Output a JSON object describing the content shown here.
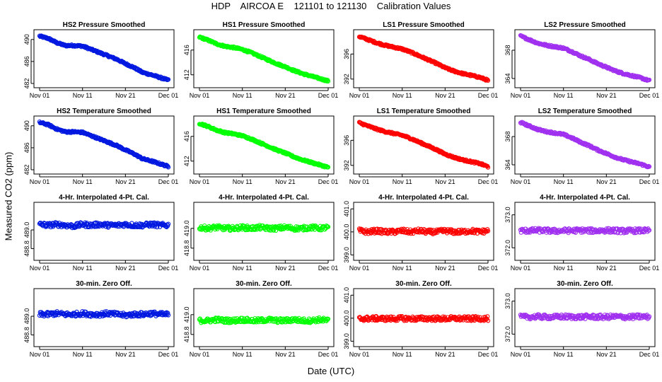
{
  "header": {
    "title": "HDP    AIRCOA E    121101 to 121130    Calibration Values",
    "ylabel": "Measured CO2 (ppm)",
    "xlabel": "Date (UTC)"
  },
  "colors": {
    "HS2": "#0018e0",
    "HS1": "#00ff00",
    "LS1": "#ff0000",
    "LS2": "#a030f0"
  },
  "x_axis": {
    "min_day": 1,
    "max_day": 31,
    "ticks": [
      {
        "day": 1,
        "label": "Nov 01"
      },
      {
        "day": 11,
        "label": "Nov 11"
      },
      {
        "day": 21,
        "label": "Nov 21"
      },
      {
        "day": 31,
        "label": "Dec 01"
      }
    ]
  },
  "chart_data": [
    {
      "type": "scatter",
      "title": "HS2 Pressure Smoothed",
      "series": "HS2",
      "ylim": [
        482,
        491
      ],
      "yticks": [
        482,
        486,
        490
      ],
      "x": [
        1,
        3,
        5,
        7,
        9,
        11,
        13,
        15,
        17,
        19,
        21,
        23,
        25,
        27,
        29,
        31
      ],
      "y": [
        490.6,
        490.2,
        489.4,
        488.9,
        488.9,
        488.8,
        488.2,
        487.6,
        487.0,
        486.4,
        485.6,
        484.9,
        484.0,
        483.6,
        483.1,
        482.6
      ]
    },
    {
      "type": "scatter",
      "title": "HS1 Pressure Smoothed",
      "series": "HS1",
      "ylim": [
        410.6,
        418.6
      ],
      "yticks": [
        412,
        416
      ],
      "x": [
        1,
        3,
        5,
        7,
        9,
        11,
        13,
        15,
        17,
        19,
        21,
        23,
        25,
        27,
        29,
        31
      ],
      "y": [
        418.1,
        417.6,
        417.0,
        416.6,
        416.4,
        416.1,
        415.6,
        415.0,
        414.4,
        413.8,
        413.3,
        412.7,
        412.2,
        411.8,
        411.4,
        411.0
      ]
    },
    {
      "type": "scatter",
      "title": "LS1 Pressure Smoothed",
      "series": "LS1",
      "ylim": [
        391.3,
        399.2
      ],
      "yticks": [
        392,
        396
      ],
      "x": [
        1,
        3,
        5,
        7,
        9,
        11,
        13,
        15,
        17,
        19,
        21,
        23,
        25,
        27,
        29,
        31
      ],
      "y": [
        398.8,
        398.3,
        397.8,
        397.4,
        397.1,
        396.8,
        396.3,
        395.7,
        395.1,
        394.5,
        393.8,
        393.3,
        392.9,
        392.6,
        392.3,
        391.8
      ]
    },
    {
      "type": "scatter",
      "title": "LS2 Pressure Smoothed",
      "series": "LS2",
      "ylim": [
        363.3,
        370.3
      ],
      "yticks": [
        364,
        368
      ],
      "x": [
        1,
        3,
        5,
        7,
        9,
        11,
        13,
        15,
        17,
        19,
        21,
        23,
        25,
        27,
        29,
        31
      ],
      "y": [
        370.0,
        369.5,
        369.0,
        368.7,
        368.5,
        368.3,
        367.8,
        367.2,
        366.7,
        366.1,
        365.6,
        365.1,
        364.7,
        364.4,
        364.1,
        363.7
      ]
    },
    {
      "type": "scatter",
      "title": "HS2 Temperature Smoothed",
      "series": "HS2",
      "ylim": [
        482,
        491
      ],
      "yticks": [
        482,
        486,
        490
      ],
      "x": [
        1,
        3,
        5,
        7,
        9,
        11,
        13,
        15,
        17,
        19,
        21,
        23,
        25,
        27,
        29,
        31
      ],
      "y": [
        490.6,
        490.2,
        489.4,
        488.9,
        488.9,
        488.8,
        488.2,
        487.6,
        487.0,
        486.4,
        485.6,
        484.9,
        484.0,
        483.6,
        483.1,
        482.6
      ]
    },
    {
      "type": "scatter",
      "title": "HS1 Temperature Smoothed",
      "series": "HS1",
      "ylim": [
        410.6,
        418.6
      ],
      "yticks": [
        412,
        416
      ],
      "x": [
        1,
        3,
        5,
        7,
        9,
        11,
        13,
        15,
        17,
        19,
        21,
        23,
        25,
        27,
        29,
        31
      ],
      "y": [
        418.1,
        417.6,
        417.0,
        416.6,
        416.4,
        416.1,
        415.6,
        415.0,
        414.4,
        413.8,
        413.3,
        412.7,
        412.2,
        411.8,
        411.4,
        411.0
      ]
    },
    {
      "type": "scatter",
      "title": "LS1 Temperature Smoothed",
      "series": "LS1",
      "ylim": [
        391.3,
        399.2
      ],
      "yticks": [
        392,
        396
      ],
      "x": [
        1,
        3,
        5,
        7,
        9,
        11,
        13,
        15,
        17,
        19,
        21,
        23,
        25,
        27,
        29,
        31
      ],
      "y": [
        398.8,
        398.3,
        397.8,
        397.4,
        397.1,
        396.8,
        396.3,
        395.7,
        395.1,
        394.5,
        393.8,
        393.3,
        392.9,
        392.6,
        392.3,
        391.8
      ]
    },
    {
      "type": "scatter",
      "title": "LS2 Temperature Smoothed",
      "series": "LS2",
      "ylim": [
        363.3,
        370.3
      ],
      "yticks": [
        364,
        368
      ],
      "x": [
        1,
        3,
        5,
        7,
        9,
        11,
        13,
        15,
        17,
        19,
        21,
        23,
        25,
        27,
        29,
        31
      ],
      "y": [
        370.0,
        369.5,
        369.0,
        368.7,
        368.5,
        368.3,
        367.8,
        367.2,
        366.7,
        366.1,
        365.6,
        365.1,
        364.7,
        364.4,
        364.1,
        363.7
      ]
    },
    {
      "type": "scatter",
      "title": "4-Hr. Interpolated 4-Pt. Cal.",
      "series": "HS2",
      "ylim": [
        488.72,
        489.25
      ],
      "yticks": [
        488.8,
        489.0
      ],
      "x": [
        1,
        3,
        5,
        7,
        9,
        11,
        13,
        15,
        17,
        19,
        21,
        23,
        25,
        27,
        29,
        31
      ],
      "y": [
        489.06,
        489.05,
        489.06,
        489.05,
        489.04,
        489.06,
        489.05,
        489.06,
        489.05,
        489.05,
        489.06,
        489.05,
        489.05,
        489.06,
        489.05,
        489.05
      ]
    },
    {
      "type": "scatter",
      "title": "4-Hr. Interpolated 4-Pt. Cal.",
      "series": "HS1",
      "ylim": [
        418.72,
        419.22
      ],
      "yticks": [
        418.8,
        419.0
      ],
      "x": [
        1,
        3,
        5,
        7,
        9,
        11,
        13,
        15,
        17,
        19,
        21,
        23,
        25,
        27,
        29,
        31
      ],
      "y": [
        419.01,
        419.0,
        419.01,
        419.0,
        419.0,
        419.01,
        419.0,
        419.01,
        419.0,
        419.0,
        419.01,
        419.0,
        419.0,
        419.01,
        419.0,
        419.01
      ]
    },
    {
      "type": "scatter",
      "title": "4-Hr. Interpolated 4-Pt. Cal.",
      "series": "LS1",
      "ylim": [
        398.95,
        401.1
      ],
      "yticks": [
        399.0,
        400.0,
        401.0
      ],
      "x": [
        1,
        3,
        5,
        7,
        9,
        11,
        13,
        15,
        17,
        19,
        21,
        23,
        25,
        27,
        29,
        31
      ],
      "y": [
        400.05,
        400.0,
        400.05,
        400.0,
        400.0,
        400.05,
        400.0,
        400.05,
        400.0,
        400.0,
        400.05,
        400.0,
        400.0,
        400.05,
        400.0,
        400.05
      ]
    },
    {
      "type": "scatter",
      "title": "4-Hr. Interpolated 4-Pt. Cal.",
      "series": "LS2",
      "ylim": [
        371.75,
        373.25
      ],
      "yticks": [
        372.0,
        373.0
      ],
      "x": [
        1,
        3,
        5,
        7,
        9,
        11,
        13,
        15,
        17,
        19,
        21,
        23,
        25,
        27,
        29,
        31
      ],
      "y": [
        372.52,
        372.52,
        372.53,
        372.52,
        372.51,
        372.52,
        372.52,
        372.53,
        372.52,
        372.52,
        372.53,
        372.52,
        372.51,
        372.52,
        372.52,
        372.52
      ]
    },
    {
      "type": "scatter",
      "title": "30-min. Zero Off.",
      "series": "HS2",
      "ylim": [
        488.72,
        489.25
      ],
      "yticks": [
        488.8,
        489.0
      ],
      "x": [
        1,
        3,
        5,
        7,
        9,
        11,
        13,
        15,
        17,
        19,
        21,
        23,
        25,
        27,
        29,
        31
      ],
      "y": [
        489.02,
        489.02,
        489.03,
        489.02,
        489.02,
        489.03,
        489.02,
        489.02,
        489.03,
        489.02,
        489.01,
        489.02,
        489.02,
        489.03,
        489.02,
        489.02
      ]
    },
    {
      "type": "scatter",
      "title": "30-min. Zero Off.",
      "series": "HS1",
      "ylim": [
        418.72,
        419.22
      ],
      "yticks": [
        418.8,
        419.0
      ],
      "x": [
        1,
        3,
        5,
        7,
        9,
        11,
        13,
        15,
        17,
        19,
        21,
        23,
        25,
        27,
        29,
        31
      ],
      "y": [
        418.94,
        418.94,
        418.95,
        418.94,
        418.94,
        418.95,
        418.94,
        418.94,
        418.95,
        418.94,
        418.94,
        418.95,
        418.94,
        418.94,
        418.95,
        418.94
      ]
    },
    {
      "type": "scatter",
      "title": "30-min. Zero Off.",
      "series": "LS1",
      "ylim": [
        398.95,
        401.1
      ],
      "yticks": [
        399.0,
        400.0,
        401.0
      ],
      "x": [
        1,
        3,
        5,
        7,
        9,
        11,
        13,
        15,
        17,
        19,
        21,
        23,
        25,
        27,
        29,
        31
      ],
      "y": [
        399.98,
        399.98,
        399.99,
        399.98,
        399.98,
        399.99,
        399.98,
        399.98,
        399.99,
        399.98,
        399.98,
        399.99,
        399.98,
        399.98,
        399.99,
        399.98
      ]
    },
    {
      "type": "scatter",
      "title": "30-min. Zero Off.",
      "series": "LS2",
      "ylim": [
        371.75,
        373.25
      ],
      "yticks": [
        372.0,
        373.0
      ],
      "x": [
        1,
        3,
        5,
        7,
        9,
        11,
        13,
        15,
        17,
        19,
        21,
        23,
        25,
        27,
        29,
        31
      ],
      "y": [
        372.52,
        372.52,
        372.53,
        372.52,
        372.52,
        372.53,
        372.52,
        372.52,
        372.53,
        372.52,
        372.52,
        372.53,
        372.52,
        372.52,
        372.53,
        372.52
      ]
    }
  ]
}
